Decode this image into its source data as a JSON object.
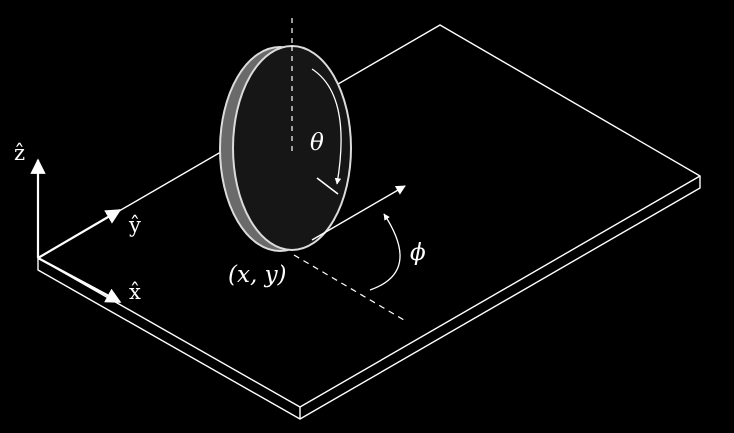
{
  "colors": {
    "background": "#000000",
    "stroke": "#ffffff",
    "disk_face": "#161616",
    "disk_rim": "#6a6a6a",
    "disk_outline": "#dcdcdc"
  },
  "labels": {
    "z_axis": "ẑ",
    "y_axis": "ŷ",
    "x_axis": "x̂",
    "theta": "θ",
    "phi": "ϕ",
    "position": "(x, y)"
  },
  "icons": {
    "z_axis": "arrow-up-icon",
    "y_axis": "arrow-up-right-icon",
    "x_axis": "arrow-down-right-icon"
  }
}
